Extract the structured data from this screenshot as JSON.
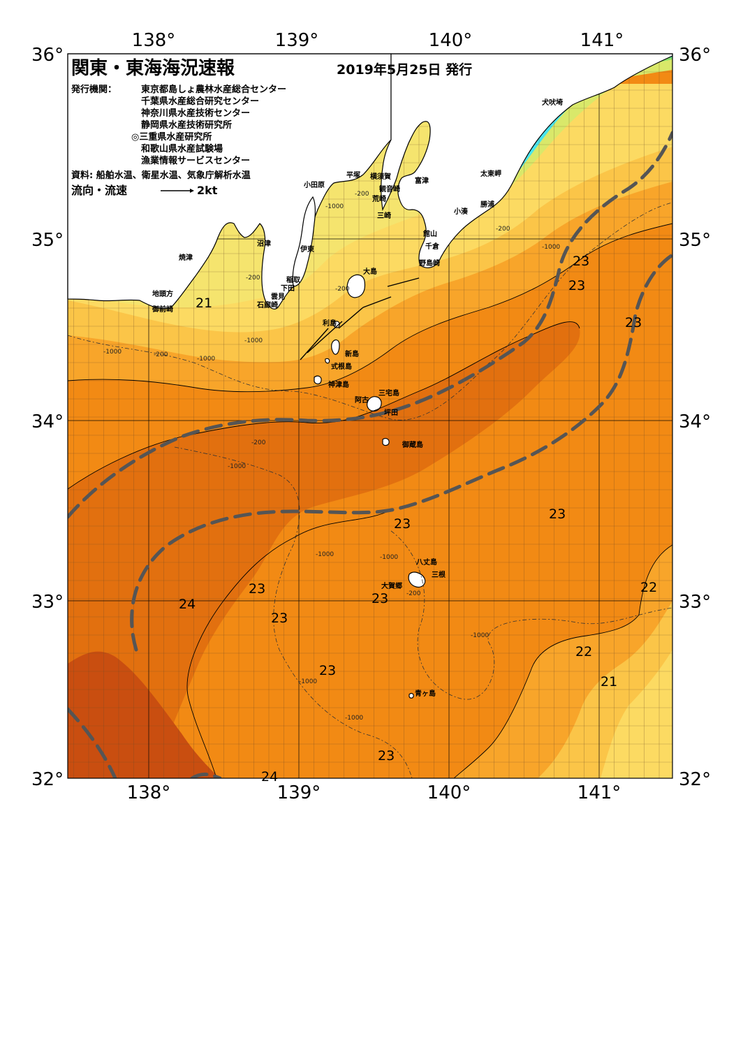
{
  "title": "関東・東海海況速報",
  "date": "2019年5月25日 発行",
  "issuer_label": "発行機関：",
  "issuers": [
    "東京都島しょ農林水産総合センター",
    "千葉県水産総合研究センター",
    "神奈川県水産技術センター",
    "静岡県水産技術研究所",
    "◎三重県水産研究所",
    "和歌山県水産試験場",
    "漁業情報サービスセンター"
  ],
  "source": "資料: 船舶水温、衛星水温、気象庁解析水温",
  "flow_legend": {
    "label": "流向・流速",
    "scale": "2kt"
  },
  "axes": {
    "longitudes": [
      "138°",
      "139°",
      "140°",
      "141°"
    ],
    "latitudes": [
      "36°",
      "35°",
      "34°",
      "33°",
      "32°"
    ]
  },
  "colors": {
    "ocean_24": "#c94e10",
    "ocean_23_5": "#e2700f",
    "ocean_23": "#f28a14",
    "ocean_22": "#f8a52a",
    "ocean_21": "#fbc548",
    "ocean_20": "#fcda62",
    "ocean_19": "#f5e46e",
    "ocean_18": "#d9e86a",
    "ocean_16": "#86df6a",
    "ocean_14": "#3fd8a8",
    "ocean_12": "#48e4ee",
    "land": "#ffffff",
    "kuroshio_line": "#555555"
  },
  "places": [
    "犬吠埼",
    "太東岬",
    "勝浦",
    "小湊",
    "富津",
    "館山",
    "千倉",
    "野島崎",
    "小田原",
    "平塚",
    "横須賀",
    "観音崎",
    "荒崎",
    "三崎",
    "焼津",
    "沼津",
    "伊東",
    "稲取",
    "下田",
    "雲見",
    "石廊崎",
    "地頭方",
    "御前崎",
    "大島",
    "利島",
    "新島",
    "式根島",
    "神津島",
    "三宅島",
    "阿古",
    "坪田",
    "御蔵島",
    "八丈島",
    "三根",
    "大賀郷",
    "青ヶ島"
  ],
  "temperature_labels": [
    "21",
    "23",
    "23",
    "23",
    "23",
    "23",
    "24",
    "23",
    "23",
    "23",
    "22",
    "23",
    "22",
    "21",
    "23",
    "24"
  ],
  "depth_labels": [
    "-200",
    "-1000",
    "-200",
    "-1000",
    "-200",
    "-1000",
    "-200",
    "-1000",
    "-200",
    "-1000",
    "-200",
    "-1000",
    "-1000",
    "-1000",
    "-200",
    "-1000",
    "-1000",
    "-1000"
  ]
}
